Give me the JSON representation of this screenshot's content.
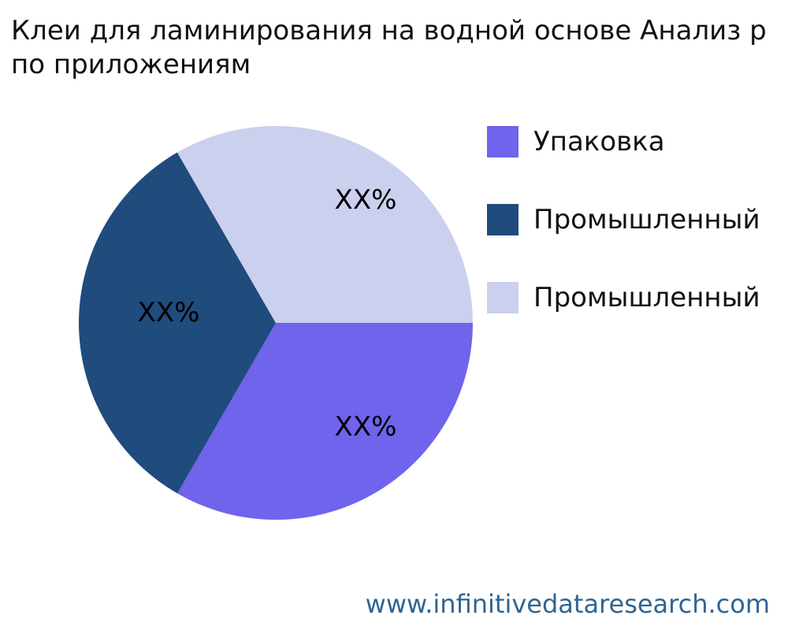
{
  "title": {
    "line1": "Клеи для ламинирования на водной основе Анализ р",
    "line2": "по приложениям"
  },
  "footer": {
    "url_text": "www.infinitivedataresearch.com",
    "color": "#2E6593"
  },
  "colors": {
    "background": "#FFFFFF",
    "title_text": "#111111",
    "slice_label_text": "#000000"
  },
  "chart_data": {
    "type": "pie",
    "title": "Клеи для ламинирования на водной основе Анализ р по приложениям",
    "labels": [
      "Упаковка",
      "Промышленный",
      "Промышленный"
    ],
    "values": [
      33.33,
      33.33,
      33.34
    ],
    "value_labels": [
      "XX%",
      "XX%",
      "XX%"
    ],
    "colors": [
      "#7063EC",
      "#1F4B7D",
      "#CBD0EE"
    ],
    "start_angle_deg": 0,
    "direction": "clockwise",
    "legend_position": "right"
  }
}
